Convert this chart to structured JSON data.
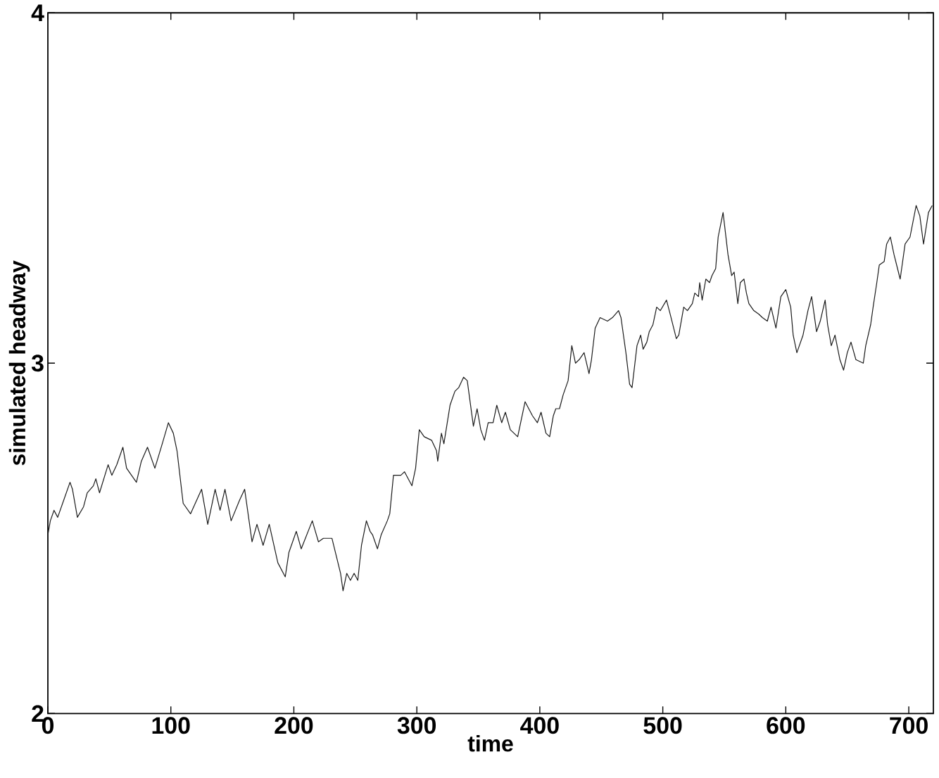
{
  "chart_data": {
    "type": "line",
    "xlabel": "time",
    "ylabel": "simulated headway",
    "color": "#1a1a1a",
    "marker": "none",
    "line_style": "solid",
    "xlim": [
      0,
      720
    ],
    "ylim": [
      2,
      4
    ],
    "xticks": [
      0,
      100,
      200,
      300,
      400,
      500,
      600,
      700
    ],
    "yticks": [
      2,
      3,
      4
    ],
    "x": [
      0,
      2,
      5,
      8,
      13,
      18,
      20,
      24,
      29,
      32,
      37,
      39,
      42,
      49,
      52,
      56,
      61,
      64,
      72,
      76,
      81,
      87,
      93,
      98,
      102,
      105,
      110,
      116,
      125,
      130,
      136,
      140,
      144,
      149,
      156,
      160,
      166,
      170,
      175,
      180,
      187,
      193,
      196,
      202,
      206,
      215,
      220,
      224,
      231,
      238,
      240,
      243,
      246,
      249,
      252,
      255,
      259,
      262,
      264,
      268,
      271,
      276,
      278,
      281,
      287,
      290,
      293,
      296,
      299,
      302,
      306,
      312,
      316,
      317,
      320,
      322,
      327,
      329,
      331,
      334,
      338,
      341,
      346,
      349,
      352,
      355,
      358,
      362,
      365,
      369,
      372,
      376,
      382,
      388,
      394,
      398,
      401,
      405,
      408,
      411,
      413,
      416,
      419,
      423,
      426,
      429,
      432,
      436,
      440,
      442,
      445,
      449,
      455,
      459,
      464,
      466,
      470,
      473,
      475,
      479,
      482,
      484,
      487,
      489,
      492,
      495,
      498,
      503,
      506,
      511,
      513,
      517,
      520,
      524,
      526,
      529,
      530,
      532,
      535,
      538,
      540,
      543,
      545,
      549,
      553,
      556,
      558,
      561,
      563,
      566,
      568,
      570,
      574,
      578,
      581,
      585,
      588,
      592,
      596,
      600,
      604,
      606,
      609,
      614,
      618,
      621,
      625,
      628,
      632,
      634,
      637,
      640,
      644,
      647,
      650,
      653,
      657,
      663,
      665,
      669,
      671,
      674,
      676,
      680,
      682,
      685,
      688,
      693,
      697,
      701,
      706,
      709,
      712,
      716,
      719
    ],
    "values": [
      2.51,
      2.55,
      2.58,
      2.56,
      2.61,
      2.66,
      2.64,
      2.56,
      2.59,
      2.63,
      2.65,
      2.67,
      2.63,
      2.71,
      2.68,
      2.71,
      2.76,
      2.7,
      2.66,
      2.72,
      2.76,
      2.7,
      2.77,
      2.83,
      2.8,
      2.75,
      2.6,
      2.57,
      2.64,
      2.54,
      2.64,
      2.58,
      2.64,
      2.55,
      2.61,
      2.64,
      2.49,
      2.54,
      2.48,
      2.54,
      2.43,
      2.39,
      2.46,
      2.52,
      2.47,
      2.55,
      2.49,
      2.5,
      2.5,
      2.4,
      2.35,
      2.4,
      2.38,
      2.4,
      2.38,
      2.48,
      2.55,
      2.52,
      2.51,
      2.47,
      2.51,
      2.55,
      2.57,
      2.68,
      2.68,
      2.69,
      2.67,
      2.65,
      2.7,
      2.81,
      2.79,
      2.78,
      2.75,
      2.72,
      2.8,
      2.77,
      2.88,
      2.9,
      2.92,
      2.93,
      2.96,
      2.95,
      2.82,
      2.87,
      2.81,
      2.78,
      2.83,
      2.83,
      2.88,
      2.83,
      2.86,
      2.81,
      2.79,
      2.89,
      2.85,
      2.83,
      2.86,
      2.8,
      2.79,
      2.85,
      2.87,
      2.87,
      2.91,
      2.95,
      3.05,
      3.0,
      3.01,
      3.03,
      2.97,
      3.01,
      3.1,
      3.13,
      3.12,
      3.13,
      3.15,
      3.13,
      3.03,
      2.94,
      2.93,
      3.05,
      3.08,
      3.04,
      3.06,
      3.09,
      3.11,
      3.16,
      3.15,
      3.18,
      3.14,
      3.07,
      3.08,
      3.16,
      3.15,
      3.17,
      3.2,
      3.19,
      3.23,
      3.18,
      3.24,
      3.23,
      3.25,
      3.27,
      3.36,
      3.43,
      3.31,
      3.25,
      3.26,
      3.17,
      3.23,
      3.24,
      3.2,
      3.17,
      3.15,
      3.14,
      3.13,
      3.12,
      3.16,
      3.1,
      3.19,
      3.21,
      3.16,
      3.08,
      3.03,
      3.08,
      3.15,
      3.19,
      3.09,
      3.12,
      3.18,
      3.11,
      3.05,
      3.08,
      3.01,
      2.98,
      3.03,
      3.06,
      3.01,
      3.0,
      3.05,
      3.11,
      3.16,
      3.23,
      3.28,
      3.29,
      3.34,
      3.36,
      3.31,
      3.24,
      3.34,
      3.36,
      3.45,
      3.42,
      3.34,
      3.43,
      3.45
    ]
  }
}
